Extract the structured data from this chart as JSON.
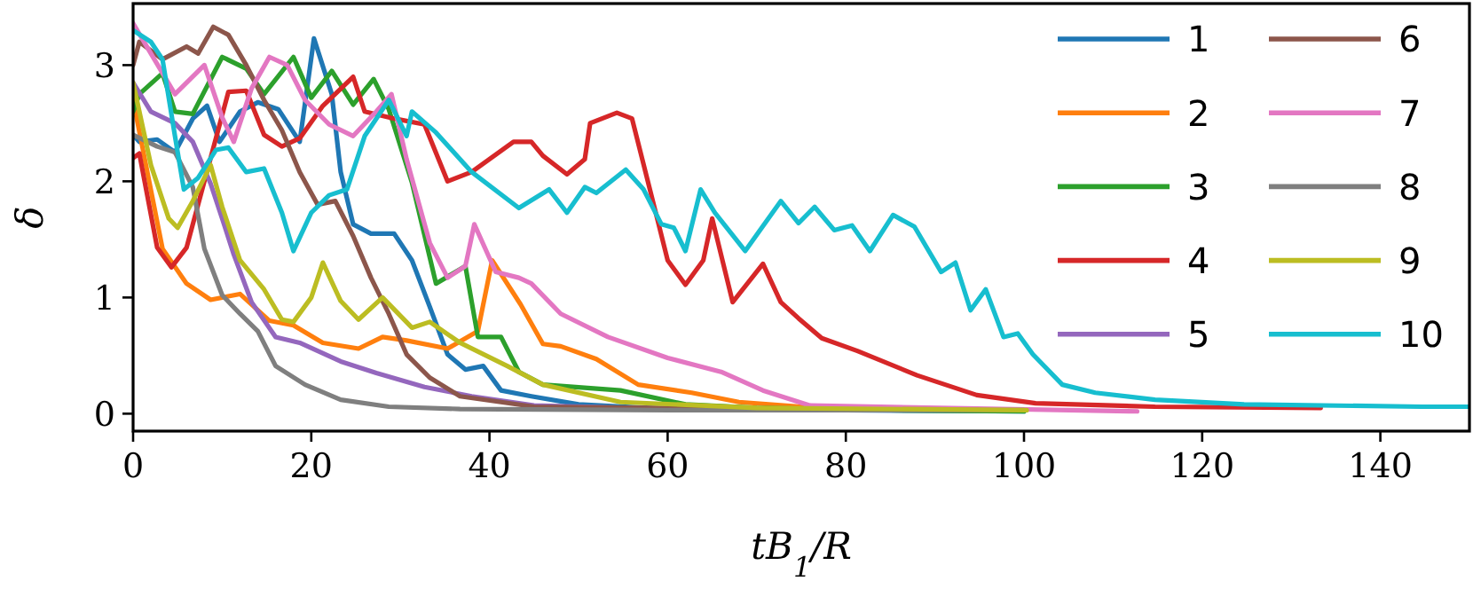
{
  "chart_data": {
    "type": "line",
    "xlabel": "tB$_{1}$/R",
    "ylabel": "δ",
    "xlim": [
      0,
      150
    ],
    "ylim": [
      -0.15,
      3.53
    ],
    "xticks": [
      0,
      20,
      40,
      60,
      80,
      100,
      120,
      140
    ],
    "yticks": [
      0,
      1,
      2,
      3
    ],
    "grid": false,
    "legend": "top right",
    "line_style": "solid",
    "marker": "none",
    "series": [
      {
        "name": "1",
        "color": "#1f77b4",
        "x": [
          0,
          0.7,
          2.7,
          4.7,
          6.7,
          8.3,
          9.7,
          12,
          14,
          16.3,
          18.7,
          20.3,
          22.3,
          23.3,
          24.7,
          26.7,
          29.3,
          31.3,
          33.3,
          35.3,
          37.3,
          39.3,
          41.3,
          44.7,
          50,
          60,
          80,
          100
        ],
        "values": [
          2.4,
          2.34,
          2.36,
          2.25,
          2.54,
          2.65,
          2.34,
          2.6,
          2.68,
          2.62,
          2.34,
          3.23,
          2.75,
          2.08,
          1.63,
          1.55,
          1.55,
          1.32,
          0.92,
          0.51,
          0.38,
          0.41,
          0.2,
          0.15,
          0.08,
          0.04,
          0.03,
          0.02
        ]
      },
      {
        "name": "2",
        "color": "#ff7f0e",
        "x": [
          0,
          3.3,
          6,
          8.7,
          12,
          15.3,
          18,
          21.3,
          25.3,
          28,
          30.7,
          35.3,
          38.7,
          40.3,
          43.5,
          46,
          48,
          52,
          56.7,
          62.7,
          68,
          75,
          85,
          100
        ],
        "values": [
          2.7,
          1.42,
          1.12,
          0.98,
          1.03,
          0.8,
          0.76,
          0.61,
          0.56,
          0.66,
          0.63,
          0.56,
          0.71,
          1.32,
          0.94,
          0.6,
          0.58,
          0.47,
          0.25,
          0.18,
          0.1,
          0.06,
          0.04,
          0.03
        ]
      },
      {
        "name": "3",
        "color": "#2ca02c",
        "x": [
          0,
          0.7,
          3.3,
          4.7,
          6.7,
          10,
          12.7,
          14.7,
          18,
          20,
          22.3,
          24.7,
          27,
          28.7,
          31.3,
          34,
          37.3,
          38.7,
          41.3,
          43.3,
          46,
          54.7,
          62,
          70,
          85,
          100
        ],
        "values": [
          2.6,
          2.75,
          2.93,
          2.6,
          2.58,
          3.07,
          2.97,
          2.75,
          3.07,
          2.72,
          2.95,
          2.66,
          2.88,
          2.62,
          1.99,
          1.12,
          1.27,
          0.66,
          0.66,
          0.36,
          0.25,
          0.2,
          0.08,
          0.05,
          0.03,
          0.02
        ]
      },
      {
        "name": "4",
        "color": "#d62728",
        "x": [
          0,
          0.7,
          2.7,
          4.3,
          6,
          8.7,
          10.7,
          12.7,
          14.7,
          16.7,
          18.7,
          21.3,
          24.7,
          26,
          29.3,
          32.7,
          35.3,
          38,
          42.7,
          44.7,
          46,
          48.7,
          50.7,
          51.3,
          54.3,
          56,
          58.7,
          60,
          62,
          64,
          65,
          67.3,
          70.7,
          72.7,
          74.7,
          77.3,
          81.3,
          88,
          94.7,
          101.3,
          114.7,
          133.3
        ],
        "values": [
          2.2,
          2.24,
          1.43,
          1.26,
          1.43,
          2.2,
          2.77,
          2.78,
          2.4,
          2.3,
          2.37,
          2.65,
          2.9,
          2.6,
          2.54,
          2.49,
          2.0,
          2.08,
          2.34,
          2.34,
          2.22,
          2.06,
          2.19,
          2.5,
          2.59,
          2.54,
          1.72,
          1.32,
          1.11,
          1.32,
          1.68,
          0.96,
          1.29,
          0.96,
          0.82,
          0.65,
          0.54,
          0.33,
          0.16,
          0.09,
          0.06,
          0.05
        ]
      },
      {
        "name": "5",
        "color": "#9467bd",
        "x": [
          0,
          2,
          4.7,
          6.7,
          8.7,
          10,
          11.3,
          13.3,
          16,
          18.7,
          23.3,
          27.3,
          32.7,
          38,
          45,
          60
        ],
        "values": [
          2.85,
          2.6,
          2.5,
          2.34,
          1.98,
          1.68,
          1.37,
          0.96,
          0.66,
          0.61,
          0.45,
          0.35,
          0.23,
          0.15,
          0.07,
          0.04
        ]
      },
      {
        "name": "6",
        "color": "#8c564b",
        "x": [
          0,
          0.7,
          3.3,
          6,
          7.3,
          9,
          10.7,
          12.7,
          14.7,
          16.7,
          18.7,
          20.7,
          22.7,
          24.7,
          26.7,
          28.7,
          30.7,
          33.3,
          36.7,
          45,
          70
        ],
        "values": [
          3.0,
          3.2,
          3.05,
          3.16,
          3.1,
          3.33,
          3.26,
          3.0,
          2.7,
          2.44,
          2.08,
          1.8,
          1.83,
          1.53,
          1.17,
          0.86,
          0.51,
          0.31,
          0.15,
          0.06,
          0.04
        ]
      },
      {
        "name": "7",
        "color": "#e377c2",
        "x": [
          0,
          2,
          4.7,
          8,
          10,
          11.3,
          13.3,
          15.3,
          17.3,
          19.3,
          22,
          24.7,
          27.3,
          29,
          30.7,
          33.3,
          35.3,
          37.3,
          38.3,
          40.7,
          43.3,
          44.7,
          48,
          53.3,
          60,
          66,
          70.7,
          76,
          112.7
        ],
        "values": [
          3.36,
          3.1,
          2.75,
          3.0,
          2.55,
          2.34,
          2.8,
          3.07,
          3.0,
          2.7,
          2.49,
          2.39,
          2.6,
          2.75,
          2.19,
          1.47,
          1.17,
          1.27,
          1.63,
          1.22,
          1.17,
          1.12,
          0.86,
          0.66,
          0.48,
          0.36,
          0.2,
          0.07,
          0.02
        ]
      },
      {
        "name": "8",
        "color": "#7f7f7f",
        "x": [
          0,
          2.7,
          4.7,
          6.7,
          8,
          10,
          12,
          14,
          16,
          19.3,
          23.3,
          28.7,
          36.7,
          60,
          100
        ],
        "values": [
          2.4,
          2.3,
          2.25,
          1.95,
          1.42,
          1.02,
          0.86,
          0.71,
          0.41,
          0.25,
          0.12,
          0.06,
          0.04,
          0.03,
          0.03
        ]
      },
      {
        "name": "9",
        "color": "#bcbd22",
        "x": [
          0,
          2,
          4,
          5,
          6.7,
          8.7,
          10,
          12,
          14.7,
          16.7,
          18,
          20,
          21.3,
          23.3,
          25.3,
          28,
          31.3,
          33.3,
          36.7,
          42,
          46,
          54.7,
          70,
          100.3
        ],
        "values": [
          2.85,
          2.14,
          1.68,
          1.6,
          1.83,
          2.14,
          1.78,
          1.32,
          1.07,
          0.81,
          0.79,
          1.0,
          1.3,
          0.97,
          0.81,
          1.0,
          0.74,
          0.79,
          0.61,
          0.41,
          0.25,
          0.1,
          0.05,
          0.03
        ]
      },
      {
        "name": "10",
        "color": "#17becf",
        "x": [
          0,
          2,
          3.3,
          4.7,
          5.7,
          7.3,
          9.3,
          10.7,
          12.7,
          14.7,
          16.7,
          18,
          20,
          22,
          24,
          26,
          28.7,
          30.7,
          31.3,
          34,
          38,
          43.3,
          46.7,
          48.7,
          50.7,
          52,
          55.3,
          57.3,
          59.3,
          60.7,
          62,
          63.7,
          65.3,
          68.7,
          72.7,
          74.7,
          76.5,
          78.7,
          80.7,
          82.7,
          85.3,
          87.7,
          90.7,
          92.3,
          94,
          95.7,
          97.7,
          99.3,
          101,
          104.3,
          108,
          114.7,
          124.7,
          144.7,
          150
        ],
        "values": [
          3.3,
          3.2,
          3.05,
          2.39,
          1.93,
          2.03,
          2.27,
          2.29,
          2.08,
          2.11,
          1.73,
          1.4,
          1.73,
          1.88,
          1.93,
          2.39,
          2.7,
          2.39,
          2.6,
          2.42,
          2.08,
          1.77,
          1.93,
          1.73,
          1.95,
          1.9,
          2.1,
          1.93,
          1.63,
          1.6,
          1.4,
          1.93,
          1.73,
          1.4,
          1.83,
          1.64,
          1.78,
          1.58,
          1.62,
          1.4,
          1.71,
          1.61,
          1.22,
          1.3,
          0.89,
          1.07,
          0.66,
          0.69,
          0.51,
          0.25,
          0.18,
          0.12,
          0.08,
          0.06,
          0.06
        ]
      }
    ]
  }
}
